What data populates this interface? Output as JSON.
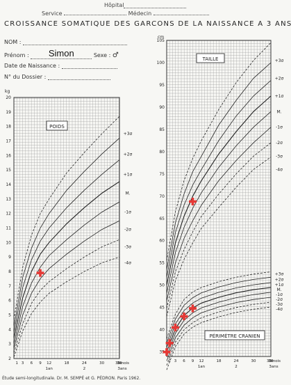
{
  "header": {
    "hopital_label": "Hôpital",
    "service_label": "Service",
    "medecin_label": "Médecin",
    "title": "CROISSANCE SOMATIQUE DES GARCONS DE LA NAISSANCE A 3 ANS"
  },
  "form": {
    "nom_label": "NOM :",
    "prenom_label": "Prénom :",
    "prenom_value": "Simon",
    "sexe_label": "Sexe :",
    "sexe_value": "♂",
    "date_label": "Date de Naissance :",
    "dossier_label": "N° du Dossier :"
  },
  "footer": {
    "credit": "Étude semi-longitudinale.    Dr. M. SEMPÉ et G. PÉDRON.    Paris 1962."
  },
  "colors": {
    "grid": "#9a9a9a",
    "curve": "#222222",
    "marker": "#e53935"
  },
  "chart_data": [
    {
      "type": "line",
      "title": "POIDS",
      "ylabel": "kg",
      "xlabel": "mois",
      "x_ticks": [
        "1",
        "3",
        "6",
        "9",
        "12",
        "18",
        "24",
        "30",
        "36"
      ],
      "x_year_labels": [
        "1an",
        "2",
        "36mois 3ans"
      ],
      "ylim": [
        2,
        20
      ],
      "y_ticks": [
        "2",
        "3",
        "4",
        "5",
        "6",
        "7",
        "8",
        "9",
        "10",
        "11",
        "12",
        "13",
        "14",
        "15",
        "16",
        "17",
        "18",
        "19",
        "20"
      ],
      "sd_labels": [
        "+3σ",
        "+2σ",
        "+1σ",
        "M.",
        "-1σ",
        "-2σ",
        "-3σ",
        "-4σ"
      ],
      "series": [
        {
          "name": "+3σ",
          "x": [
            0,
            3,
            6,
            9,
            12,
            18,
            24,
            30,
            36
          ],
          "y": [
            4.7,
            8.3,
            10.5,
            12.0,
            13.0,
            14.8,
            16.2,
            17.5,
            18.7
          ]
        },
        {
          "name": "+2σ",
          "x": [
            0,
            3,
            6,
            9,
            12,
            18,
            24,
            30,
            36
          ],
          "y": [
            4.2,
            7.6,
            9.6,
            11.0,
            12.0,
            13.6,
            14.9,
            16.1,
            17.2
          ]
        },
        {
          "name": "+1σ",
          "x": [
            0,
            3,
            6,
            9,
            12,
            18,
            24,
            30,
            36
          ],
          "y": [
            3.8,
            6.9,
            8.8,
            10.1,
            11.0,
            12.4,
            13.6,
            14.7,
            15.7
          ]
        },
        {
          "name": "M.",
          "x": [
            0,
            3,
            6,
            9,
            12,
            18,
            24,
            30,
            36
          ],
          "y": [
            3.4,
            6.2,
            8.0,
            9.2,
            10.0,
            11.3,
            12.4,
            13.4,
            14.2
          ]
        },
        {
          "name": "-1σ",
          "x": [
            0,
            3,
            6,
            9,
            12,
            18,
            24,
            30,
            36
          ],
          "y": [
            3.0,
            5.6,
            7.2,
            8.3,
            9.1,
            10.2,
            11.2,
            12.1,
            12.8
          ]
        },
        {
          "name": "-2σ",
          "x": [
            0,
            3,
            6,
            9,
            12,
            18,
            24,
            30,
            36
          ],
          "y": [
            2.7,
            5.0,
            6.5,
            7.5,
            8.2,
            9.2,
            10.1,
            10.9,
            11.5
          ]
        },
        {
          "name": "-3σ",
          "x": [
            0,
            3,
            6,
            9,
            12,
            18,
            24,
            30,
            36
          ],
          "y": [
            2.4,
            4.4,
            5.8,
            6.7,
            7.3,
            8.2,
            9.0,
            9.7,
            10.2
          ]
        },
        {
          "name": "-4σ",
          "x": [
            0,
            3,
            6,
            9,
            12,
            18,
            24,
            30,
            36
          ],
          "y": [
            2.1,
            3.9,
            5.1,
            5.9,
            6.5,
            7.3,
            8.0,
            8.6,
            9.0
          ]
        }
      ],
      "measurements": [
        {
          "x": 9,
          "y": 7.9
        }
      ]
    },
    {
      "type": "line",
      "title": "TAILLE",
      "ylabel": "cm",
      "xlabel": "mois",
      "x_ticks": [
        "1",
        "3",
        "6",
        "9",
        "12",
        "18",
        "24",
        "30",
        "36"
      ],
      "x_year_labels": [
        "1an",
        "2",
        "36mois 3ans"
      ],
      "ylim": [
        34,
        105
      ],
      "y_ticks": [
        "35",
        "40",
        "45",
        "50",
        "55",
        "60",
        "65",
        "70",
        "75",
        "80",
        "85",
        "90",
        "95",
        "100",
        "105"
      ],
      "sd_labels": [
        "+3σ",
        "+2σ",
        "+1σ",
        "M.",
        "-1σ",
        "-2σ",
        "-3σ",
        "-4σ"
      ],
      "series": [
        {
          "name": "+3σ",
          "x": [
            0,
            3,
            6,
            9,
            12,
            18,
            24,
            30,
            36
          ],
          "y": [
            55.5,
            66.5,
            73.5,
            78.5,
            82.5,
            89.5,
            95.5,
            100.5,
            104.5
          ]
        },
        {
          "name": "+2σ",
          "x": [
            0,
            3,
            6,
            9,
            12,
            18,
            24,
            30,
            36
          ],
          "y": [
            53.5,
            64.0,
            70.5,
            75.5,
            79.0,
            86.0,
            91.5,
            96.5,
            100.0
          ]
        },
        {
          "name": "+1σ",
          "x": [
            0,
            3,
            6,
            9,
            12,
            18,
            24,
            30,
            36
          ],
          "y": [
            51.8,
            61.8,
            68.0,
            72.5,
            76.0,
            82.5,
            88.0,
            92.5,
            96.0
          ]
        },
        {
          "name": "M.",
          "x": [
            0,
            3,
            6,
            9,
            12,
            18,
            24,
            30,
            36
          ],
          "y": [
            50.0,
            59.5,
            65.5,
            70.0,
            73.5,
            79.5,
            84.5,
            89.0,
            92.5
          ]
        },
        {
          "name": "-1σ",
          "x": [
            0,
            3,
            6,
            9,
            12,
            18,
            24,
            30,
            36
          ],
          "y": [
            48.2,
            57.3,
            63.0,
            67.3,
            70.8,
            76.5,
            81.3,
            85.5,
            89.0
          ]
        },
        {
          "name": "-2σ",
          "x": [
            0,
            3,
            6,
            9,
            12,
            18,
            24,
            30,
            36
          ],
          "y": [
            46.5,
            55.0,
            60.5,
            64.5,
            68.0,
            73.5,
            78.0,
            82.0,
            85.5
          ]
        },
        {
          "name": "-3σ",
          "x": [
            0,
            3,
            6,
            9,
            12,
            18,
            24,
            30,
            36
          ],
          "y": [
            44.8,
            53.0,
            58.0,
            62.0,
            65.5,
            70.5,
            75.0,
            79.0,
            82.0
          ]
        },
        {
          "name": "-4σ",
          "x": [
            0,
            3,
            6,
            9,
            12,
            18,
            24,
            30,
            36
          ],
          "y": [
            43.0,
            51.0,
            55.8,
            59.5,
            62.8,
            67.5,
            72.0,
            76.0,
            78.8
          ]
        }
      ],
      "measurements": [
        {
          "x": 9,
          "y": 68.8
        }
      ]
    },
    {
      "type": "line",
      "title": "PÉRIMÈTRE CRANIEN",
      "ylabel": "cm",
      "xlabel": "mois",
      "ylim": [
        34,
        105
      ],
      "sd_labels": [
        "+3σ",
        "+2σ",
        "+1σ",
        "M.",
        "-1σ",
        "-2σ",
        "-3σ",
        "-4σ"
      ],
      "series": [
        {
          "name": "+3σ",
          "x": [
            0,
            3,
            6,
            9,
            12,
            18,
            24,
            30,
            36
          ],
          "y": [
            38.0,
            43.5,
            46.8,
            48.5,
            49.5,
            50.8,
            51.8,
            52.5,
            53.0
          ]
        },
        {
          "name": "+2σ",
          "x": [
            0,
            3,
            6,
            9,
            12,
            18,
            24,
            30,
            36
          ],
          "y": [
            37.0,
            42.4,
            45.5,
            47.2,
            48.3,
            49.6,
            50.6,
            51.3,
            51.8
          ]
        },
        {
          "name": "+1σ",
          "x": [
            0,
            3,
            6,
            9,
            12,
            18,
            24,
            30,
            36
          ],
          "y": [
            36.0,
            41.3,
            44.3,
            46.0,
            47.1,
            48.4,
            49.4,
            50.1,
            50.6
          ]
        },
        {
          "name": "M.",
          "x": [
            0,
            3,
            6,
            9,
            12,
            18,
            24,
            30,
            36
          ],
          "y": [
            35.0,
            40.2,
            43.2,
            44.9,
            46.0,
            47.3,
            48.3,
            49.0,
            49.5
          ]
        },
        {
          "name": "-1σ",
          "x": [
            0,
            3,
            6,
            9,
            12,
            18,
            24,
            30,
            36
          ],
          "y": [
            34.0,
            39.2,
            42.1,
            43.8,
            44.9,
            46.2,
            47.2,
            47.9,
            48.4
          ]
        },
        {
          "name": "-2σ",
          "x": [
            0,
            3,
            6,
            9,
            12,
            18,
            24,
            30,
            36
          ],
          "y": [
            33.0,
            38.2,
            41.0,
            42.7,
            43.8,
            45.1,
            46.1,
            46.8,
            47.3
          ]
        },
        {
          "name": "-3σ",
          "x": [
            0,
            3,
            6,
            9,
            12,
            18,
            24,
            30,
            36
          ],
          "y": [
            32.0,
            37.2,
            40.0,
            41.6,
            42.7,
            44.0,
            45.0,
            45.7,
            46.2
          ]
        },
        {
          "name": "-4σ",
          "x": [
            0,
            3,
            6,
            9,
            12,
            18,
            24,
            30,
            36
          ],
          "y": [
            31.0,
            36.2,
            39.0,
            40.6,
            41.6,
            42.9,
            43.9,
            44.6,
            45.1
          ]
        }
      ],
      "measurements": [
        {
          "x": 0,
          "y": 35.0
        },
        {
          "x": 1,
          "y": 37.0
        },
        {
          "x": 3,
          "y": 40.5
        },
        {
          "x": 6,
          "y": 43.0
        },
        {
          "x": 9,
          "y": 44.8
        }
      ]
    }
  ]
}
